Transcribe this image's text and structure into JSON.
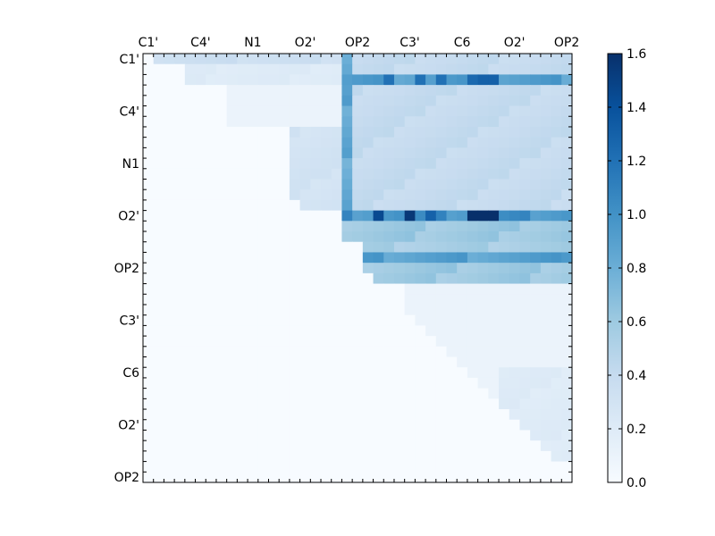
{
  "chart_data": {
    "type": "heatmap",
    "title": "",
    "xlabel": "",
    "ylabel": "",
    "grid_size": 41,
    "x_tick_labels": [
      "C1'",
      "C4'",
      "N1",
      "O2'",
      "OP2",
      "C3'",
      "C6",
      "O2'",
      "OP2"
    ],
    "y_tick_labels": [
      "C1'",
      "C4'",
      "N1",
      "O2'",
      "OP2",
      "C3'",
      "C6",
      "O2'",
      "OP2"
    ],
    "color_range": [
      0.0,
      1.6
    ],
    "colormap": "Blues",
    "colorbar_ticks": [
      "0.0",
      "0.2",
      "0.4",
      "0.6",
      "0.8",
      "1.0",
      "1.2",
      "1.4",
      "1.6"
    ],
    "colorbar_tick_values": [
      0.0,
      0.2,
      0.4,
      0.6,
      0.8,
      1.0,
      1.2,
      1.4,
      1.6
    ],
    "block_regions": [
      {
        "rows": [
          0,
          0
        ],
        "cols": [
          1,
          19
        ],
        "value": 0.35
      },
      {
        "rows": [
          1,
          2
        ],
        "cols": [
          4,
          19
        ],
        "value": 0.2
      },
      {
        "rows": [
          3,
          6
        ],
        "cols": [
          8,
          19
        ],
        "value": 0.1
      },
      {
        "rows": [
          7,
          14
        ],
        "cols": [
          14,
          19
        ],
        "value": 0.3
      },
      {
        "rows": [
          0,
          16
        ],
        "cols": [
          19,
          19
        ],
        "value": 0.85
      },
      {
        "rows": [
          0,
          15
        ],
        "cols": [
          20,
          40
        ],
        "value": 0.4
      },
      {
        "rows": [
          2,
          2
        ],
        "cols": [
          19,
          40
        ],
        "value": 0.9
      },
      {
        "rows": [
          15,
          15
        ],
        "cols": [
          19,
          40
        ],
        "value": 1.0
      },
      {
        "rows": [
          16,
          17
        ],
        "cols": [
          19,
          40
        ],
        "value": 0.6
      },
      {
        "rows": [
          18,
          18
        ],
        "cols": [
          21,
          40
        ],
        "value": 0.55
      },
      {
        "rows": [
          19,
          19
        ],
        "cols": [
          21,
          40
        ],
        "value": 0.9
      },
      {
        "rows": [
          20,
          21
        ],
        "cols": [
          21,
          40
        ],
        "value": 0.6
      },
      {
        "rows": [
          22,
          34
        ],
        "cols": [
          25,
          40
        ],
        "value": 0.1
      },
      {
        "rows": [
          30,
          38
        ],
        "cols": [
          34,
          40
        ],
        "value": 0.2
      }
    ],
    "peak_cells": [
      {
        "row": 2,
        "col": 23,
        "value": 1.2
      },
      {
        "row": 2,
        "col": 26,
        "value": 1.2
      },
      {
        "row": 2,
        "col": 28,
        "value": 1.2
      },
      {
        "row": 2,
        "col": 31,
        "value": 1.25
      },
      {
        "row": 2,
        "col": 32,
        "value": 1.3
      },
      {
        "row": 2,
        "col": 33,
        "value": 1.3
      },
      {
        "row": 15,
        "col": 22,
        "value": 1.45
      },
      {
        "row": 15,
        "col": 25,
        "value": 1.55
      },
      {
        "row": 15,
        "col": 27,
        "value": 1.3
      },
      {
        "row": 15,
        "col": 31,
        "value": 1.6
      },
      {
        "row": 15,
        "col": 32,
        "value": 1.6
      },
      {
        "row": 15,
        "col": 33,
        "value": 1.6
      },
      {
        "row": 19,
        "col": 40,
        "value": 0.95
      }
    ]
  }
}
